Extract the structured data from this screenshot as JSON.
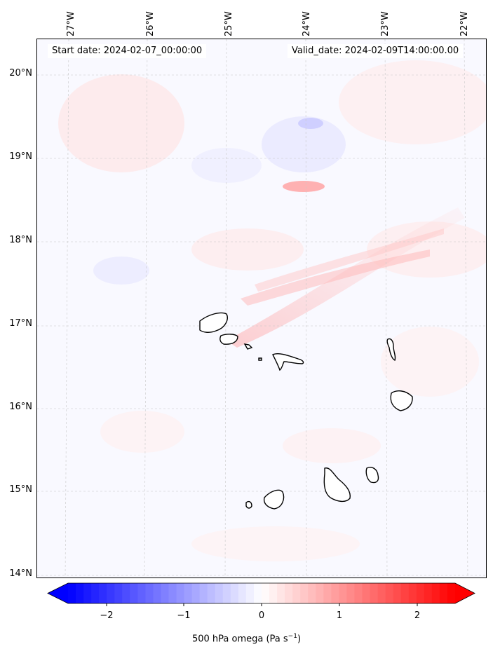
{
  "map": {
    "start_date": "Start date: 2024-02-07_00:00:00",
    "valid_date": "Valid_date: 2024-02-09T14:00:00.00",
    "lat_labels": [
      "20°N",
      "19°N",
      "18°N",
      "17°N",
      "16°N",
      "15°N",
      "14°N"
    ],
    "lon_labels": [
      "27°W",
      "26°W",
      "25°W",
      "24°W",
      "23°W",
      "22°W"
    ],
    "field_name": "500 hPa omega"
  },
  "colorbar": {
    "ticks": [
      "−2",
      "−1",
      "0",
      "1",
      "2"
    ],
    "title": "500 hPa omega (Pa s",
    "title_sup": "−1",
    "title_end": ")",
    "colors": {
      "negative": "#0000ff",
      "zero": "#ffffff",
      "positive": "#ff0000"
    },
    "range": [
      -2.5,
      2.5
    ],
    "extend": "both"
  }
}
